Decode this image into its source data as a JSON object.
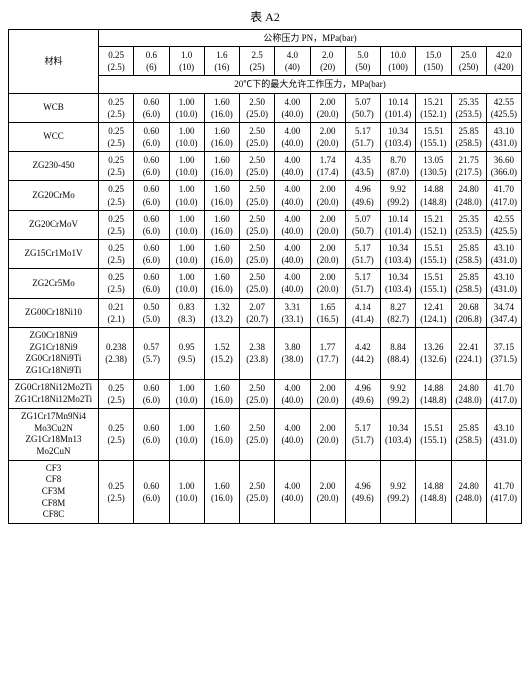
{
  "title": "表 A2",
  "header": {
    "material_label": "材料",
    "pn_label": "公称压力 PN，MPa(bar)",
    "columns_top": [
      "0.25",
      "0.6",
      "1.0",
      "1.6",
      "2.5",
      "4.0",
      "2.0",
      "5.0",
      "10.0",
      "15.0",
      "25.0",
      "42.0"
    ],
    "columns_bottom": [
      "(2.5)",
      "(6)",
      "(10)",
      "(16)",
      "(25)",
      "(40)",
      "(20)",
      "(50)",
      "(100)",
      "(150)",
      "(250)",
      "(420)"
    ],
    "working_label": "20℃下的最大允许工作压力，MPa(bar)"
  },
  "rows": [
    {
      "materials": [
        "WCB"
      ],
      "top": [
        "0.25",
        "0.60",
        "1.00",
        "1.60",
        "2.50",
        "4.00",
        "2.00",
        "5.07",
        "10.14",
        "15.21",
        "25.35",
        "42.55"
      ],
      "bottom": [
        "(2.5)",
        "(6.0)",
        "(10.0)",
        "(16.0)",
        "(25.0)",
        "(40.0)",
        "(20.0)",
        "(50.7)",
        "(101.4)",
        "(152.1)",
        "(253.5)",
        "(425.5)"
      ]
    },
    {
      "materials": [
        "WCC"
      ],
      "top": [
        "0.25",
        "0.60",
        "1.00",
        "1.60",
        "2.50",
        "4.00",
        "2.00",
        "5.17",
        "10.34",
        "15.51",
        "25.85",
        "43.10"
      ],
      "bottom": [
        "(2.5)",
        "(6.0)",
        "(10.0)",
        "(16.0)",
        "(25.0)",
        "(40.0)",
        "(20.0)",
        "(51.7)",
        "(103.4)",
        "(155.1)",
        "(258.5)",
        "(431.0)"
      ]
    },
    {
      "materials": [
        "ZG230-450"
      ],
      "top": [
        "0.25",
        "0.60",
        "1.00",
        "1.60",
        "2.50",
        "4.00",
        "1.74",
        "4.35",
        "8.70",
        "13.05",
        "21.75",
        "36.60"
      ],
      "bottom": [
        "(2.5)",
        "(6.0)",
        "(10.0)",
        "(16.0)",
        "(25.0)",
        "(40.0)",
        "(17.4)",
        "(43.5)",
        "(87.0)",
        "(130.5)",
        "(217.5)",
        "(366.0)"
      ]
    },
    {
      "materials": [
        "ZG20CrMo"
      ],
      "top": [
        "0.25",
        "0.60",
        "1.00",
        "1.60",
        "2.50",
        "4.00",
        "2.00",
        "4.96",
        "9.92",
        "14.88",
        "24.80",
        "41.70"
      ],
      "bottom": [
        "(2.5)",
        "(6.0)",
        "(10.0)",
        "(16.0)",
        "(25.0)",
        "(40.0)",
        "(20.0)",
        "(49.6)",
        "(99.2)",
        "(148.8)",
        "(248.0)",
        "(417.0)"
      ]
    },
    {
      "materials": [
        "ZG20CrMoV"
      ],
      "top": [
        "0.25",
        "0.60",
        "1.00",
        "1.60",
        "2.50",
        "4.00",
        "2.00",
        "5.07",
        "10.14",
        "15.21",
        "25.35",
        "42.55"
      ],
      "bottom": [
        "(2.5)",
        "(6.0)",
        "(10.0)",
        "(16.0)",
        "(25.0)",
        "(40.0)",
        "(20.0)",
        "(50.7)",
        "(101.4)",
        "(152.1)",
        "(253.5)",
        "(425.5)"
      ]
    },
    {
      "materials": [
        "ZG15Cr1Mo1V"
      ],
      "top": [
        "0.25",
        "0.60",
        "1.00",
        "1.60",
        "2.50",
        "4.00",
        "2.00",
        "5.17",
        "10.34",
        "15.51",
        "25.85",
        "43.10"
      ],
      "bottom": [
        "(2.5)",
        "(6.0)",
        "(10.0)",
        "(16.0)",
        "(25.0)",
        "(40.0)",
        "(20.0)",
        "(51.7)",
        "(103.4)",
        "(155.1)",
        "(258.5)",
        "(431.0)"
      ]
    },
    {
      "materials": [
        "ZG2Cr5Mo"
      ],
      "top": [
        "0.25",
        "0.60",
        "1.00",
        "1.60",
        "2.50",
        "4.00",
        "2.00",
        "5.17",
        "10.34",
        "15.51",
        "25.85",
        "43.10"
      ],
      "bottom": [
        "(2.5)",
        "(6.0)",
        "(10.0)",
        "(16.0)",
        "(25.0)",
        "(40.0)",
        "(20.0)",
        "(51.7)",
        "(103.4)",
        "(155.1)",
        "(258.5)",
        "(431.0)"
      ]
    },
    {
      "materials": [
        "ZG00Cr18Ni10"
      ],
      "top": [
        "0.21",
        "0.50",
        "0.83",
        "1.32",
        "2.07",
        "3.31",
        "1.65",
        "4.14",
        "8.27",
        "12.41",
        "20.68",
        "34.74"
      ],
      "bottom": [
        "(2.1)",
        "(5.0)",
        "(8.3)",
        "(13.2)",
        "(20.7)",
        "(33.1)",
        "(16.5)",
        "(41.4)",
        "(82.7)",
        "(124.1)",
        "(206.8)",
        "(347.4)"
      ]
    },
    {
      "materials": [
        "ZG0Cr18Ni9",
        "ZG1Cr18Ni9",
        "ZG0Cr18Ni9Ti",
        "ZG1Cr18Ni9Ti"
      ],
      "top": [
        "0.238",
        "0.57",
        "0.95",
        "1.52",
        "2.38",
        "3.80",
        "1.77",
        "4.42",
        "8.84",
        "13.26",
        "22.41",
        "37.15"
      ],
      "bottom": [
        "(2.38)",
        "(5.7)",
        "(9.5)",
        "(15.2)",
        "(23.8)",
        "(38.0)",
        "(17.7)",
        "(44.2)",
        "(88.4)",
        "(132.6)",
        "(224.1)",
        "(371.5)"
      ]
    },
    {
      "materials": [
        "ZG0Cr18Ni12Mo2Ti",
        "ZG1Cr18Ni12Mo2Ti"
      ],
      "top": [
        "0.25",
        "0.60",
        "1.00",
        "1.60",
        "2.50",
        "4.00",
        "2.00",
        "4.96",
        "9.92",
        "14.88",
        "24.80",
        "41.70"
      ],
      "bottom": [
        "(2.5)",
        "(6.0)",
        "(10.0)",
        "(16.0)",
        "(25.0)",
        "(40.0)",
        "(20.0)",
        "(49.6)",
        "(99.2)",
        "(148.8)",
        "(248.0)",
        "(417.0)"
      ]
    },
    {
      "materials": [
        "ZG1Cr17Mn9Ni4",
        "Mo3Cu2N",
        "ZG1Cr18Mn13",
        "Mo2CuN"
      ],
      "top": [
        "0.25",
        "0.60",
        "1.00",
        "1.60",
        "2.50",
        "4.00",
        "2.00",
        "5.17",
        "10.34",
        "15.51",
        "25.85",
        "43.10"
      ],
      "bottom": [
        "(2.5)",
        "(6.0)",
        "(10.0)",
        "(16.0)",
        "(25.0)",
        "(40.0)",
        "(20.0)",
        "(51.7)",
        "(103.4)",
        "(155.1)",
        "(258.5)",
        "(431.0)"
      ]
    },
    {
      "materials": [
        "CF3",
        "CF8",
        "CF3M",
        "CF8M",
        "CF8C"
      ],
      "top": [
        "0.25",
        "0.60",
        "1.00",
        "1.60",
        "2.50",
        "4.00",
        "2.00",
        "4.96",
        "9.92",
        "14.88",
        "24.80",
        "41.70"
      ],
      "bottom": [
        "(2.5)",
        "(6.0)",
        "(10.0)",
        "(16.0)",
        "(25.0)",
        "(40.0)",
        "(20.0)",
        "(49.6)",
        "(99.2)",
        "(148.8)",
        "(248.0)",
        "(417.0)"
      ]
    }
  ]
}
